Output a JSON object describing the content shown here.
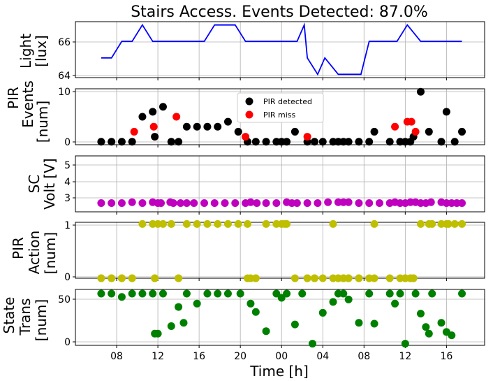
{
  "figure": {
    "title": "Stairs Access. Events Detected: 87.0%",
    "xlabel": "Time [h]",
    "x_ticks": [
      "08",
      "12",
      "16",
      "20",
      "00",
      "04",
      "08",
      "12",
      "16"
    ]
  },
  "chart_data": [
    {
      "type": "line",
      "ylabel_lines": [
        "Light",
        "[lux]"
      ],
      "y_ticks": [
        "64",
        "66"
      ],
      "ylim": [
        63.8,
        67.2
      ],
      "series": [
        {
          "color": "#0000ff",
          "x": [
            6.5,
            7.5,
            8.5,
            9.5,
            10.5,
            11.5,
            12.5,
            13.5,
            14.5,
            15.5,
            16.5,
            17.5,
            18.5,
            19.5,
            20.5,
            21.5,
            22.5,
            23.5,
            24.5,
            25.5,
            26.2,
            26.5,
            27.5,
            28.2,
            29.5,
            30.5,
            31.2,
            31.7,
            32.5,
            33.5,
            34.5,
            35.2,
            36.2,
            37.5,
            38.5,
            39.5,
            40.5,
            41.5
          ],
          "y": [
            65,
            65,
            66,
            66,
            67,
            66,
            66,
            66,
            66,
            66,
            66,
            67,
            67,
            67,
            66,
            66,
            66,
            66,
            66,
            66,
            67,
            65,
            64,
            65,
            64,
            64,
            64,
            64,
            66,
            66,
            66,
            66,
            67,
            66,
            66,
            66,
            66,
            66
          ]
        }
      ]
    },
    {
      "type": "scatter",
      "ylabel_lines": [
        "PIR",
        "Events",
        "[num]"
      ],
      "y_ticks": [
        "0",
        "10"
      ],
      "ylim": [
        -0.6,
        10.6
      ],
      "legend": {
        "position": "top-center",
        "entries": [
          {
            "label": "PIR detected",
            "color": "#000000"
          },
          {
            "label": "PIR miss",
            "color": "#ff0000"
          }
        ]
      },
      "series": [
        {
          "name": "PIR detected",
          "color": "#000000",
          "x": [
            6.5,
            7.5,
            8.5,
            9.5,
            10.5,
            11.5,
            11.7,
            12.5,
            13.3,
            14.0,
            14.8,
            15.8,
            16.8,
            17.8,
            18.8,
            19.8,
            20.7,
            21.5,
            22.5,
            23.5,
            24.0,
            24.5,
            25.3,
            26.5,
            27.2,
            28.0,
            29.0,
            29.5,
            30.0,
            30.5,
            31.5,
            32.5,
            33.0,
            34.5,
            35.5,
            36.0,
            36.5,
            36.8,
            37.5,
            38.3,
            39.5,
            40.0,
            40.8,
            41.5
          ],
          "y": [
            0,
            0,
            0,
            0,
            5,
            6,
            1,
            7,
            0,
            0,
            3,
            3,
            3,
            3,
            4,
            2,
            0,
            0,
            0,
            0,
            0,
            0,
            2,
            0,
            0,
            0,
            0,
            0,
            0,
            0,
            0,
            0,
            2,
            0,
            0,
            0,
            0,
            1,
            10,
            2,
            0,
            6,
            0,
            2
          ]
        },
        {
          "name": "PIR miss",
          "color": "#ff0000",
          "x": [
            9.7,
            11.6,
            13.8,
            20.5,
            26.5,
            35.0,
            36.2,
            36.6,
            37.0
          ],
          "y": [
            2,
            3,
            5,
            1,
            1,
            3,
            4,
            4,
            2
          ]
        }
      ]
    },
    {
      "type": "scatter",
      "ylabel_lines": [
        "SC",
        "Volt [V]"
      ],
      "y_ticks": [
        "3",
        "4",
        "5"
      ],
      "ylim": [
        2.5,
        5.7
      ],
      "series": [
        {
          "color": "#bf00bf",
          "x": [
            6.5,
            7.5,
            8.5,
            9.5,
            10.5,
            11.5,
            12.0,
            12.3,
            13.2,
            13.5,
            14.2,
            14.8,
            15.5,
            16.5,
            17.5,
            18.5,
            19.5,
            20.5,
            21.0,
            21.6,
            22.5,
            23.5,
            24.5,
            25.0,
            25.5,
            26.5,
            27.5,
            28.5,
            29.5,
            30.0,
            30.5,
            31.5,
            32.5,
            33.5,
            34.5,
            35.0,
            35.5,
            36.0,
            36.5,
            37.0,
            37.5,
            38.0,
            38.5,
            39.5,
            40.0,
            40.5,
            41.0,
            41.5
          ],
          "y": [
            3,
            3,
            3,
            3.05,
            3,
            3.05,
            3,
            3,
            3.05,
            3,
            3,
            3,
            3,
            3,
            3,
            3,
            3,
            3,
            3.05,
            3,
            3,
            3,
            3.05,
            3,
            3,
            3,
            3,
            3.05,
            3.05,
            3.05,
            3.05,
            3,
            3,
            3,
            3,
            3.05,
            3,
            3,
            3.05,
            3.05,
            3,
            3,
            3.05,
            3.05,
            3,
            3,
            3,
            3
          ]
        }
      ]
    },
    {
      "type": "scatter",
      "ylabel_lines": [
        "PIR",
        "Action",
        "[num]"
      ],
      "y_ticks": [
        "0",
        "1"
      ],
      "ylim": [
        0,
        1.03
      ],
      "series": [
        {
          "color": "#bfbf00",
          "x": [
            6.5,
            7.5,
            8.5,
            9.5,
            10.5,
            11.5,
            11.7,
            12.0,
            12.5,
            13.3,
            14.0,
            14.8,
            15.8,
            16.8,
            17.8,
            18.8,
            19.8,
            20.7,
            21.0,
            21.5,
            22.5,
            23.5,
            24.0,
            24.3,
            24.5,
            25.3,
            26.5,
            27.2,
            28.0,
            29.0,
            29.5,
            30.0,
            30.5,
            31.5,
            32.5,
            33.0,
            34.5,
            35.5,
            36.0,
            36.5,
            36.8,
            37.5,
            38.3,
            38.6,
            39.5,
            40.0,
            40.2,
            40.8,
            41.5,
            6.5,
            7.5,
            8.5,
            9.5,
            11.7,
            14.0,
            20.7,
            21.5,
            26.5,
            27.2,
            29.0,
            29.5,
            30.0,
            30.5,
            31.5,
            33.0,
            36.0,
            36.5,
            36.8
          ],
          "y": [
            0,
            0,
            0,
            0,
            1,
            1,
            0,
            1,
            1,
            1,
            0,
            1,
            1,
            1,
            1,
            1,
            1,
            1,
            0,
            0,
            1,
            1,
            1,
            1,
            1,
            0,
            0,
            0,
            0,
            1,
            0,
            0,
            0,
            0,
            0,
            1,
            0,
            0,
            0,
            0,
            0,
            1,
            1,
            1,
            1,
            1,
            1,
            1,
            1,
            0,
            0,
            0,
            0,
            0,
            0,
            0,
            0,
            0,
            0,
            0,
            0,
            0,
            0,
            0,
            0,
            0,
            0,
            0
          ]
        }
      ]
    },
    {
      "type": "scatter",
      "ylabel_lines": [
        "State",
        "Trans",
        "[num]"
      ],
      "y_ticks": [
        "0",
        "50"
      ],
      "ylim": [
        -2,
        65
      ],
      "series": [
        {
          "color": "#008000",
          "x": [
            6.5,
            7.5,
            8.5,
            9.5,
            10.5,
            11.5,
            11.7,
            12.0,
            12.5,
            13.3,
            14.0,
            14.5,
            14.8,
            15.8,
            16.8,
            17.8,
            18.8,
            20.0,
            21.0,
            21.5,
            22.5,
            23.5,
            24.0,
            24.5,
            25.3,
            26.0,
            27.0,
            28.0,
            29.0,
            29.5,
            30.0,
            30.5,
            31.5,
            32.5,
            33.0,
            34.5,
            35.0,
            35.5,
            36.0,
            37.0,
            37.5,
            38.0,
            38.3,
            38.6,
            39.5,
            40.0,
            40.5,
            41.5
          ],
          "y": [
            60,
            60,
            56,
            60,
            60,
            60,
            12,
            12,
            60,
            21,
            44,
            25,
            60,
            48,
            60,
            60,
            60,
            60,
            48,
            38,
            15,
            60,
            55,
            60,
            23,
            60,
            0,
            37,
            50,
            60,
            60,
            53,
            25,
            60,
            24,
            60,
            48,
            60,
            0,
            60,
            36,
            20,
            12,
            60,
            25,
            14,
            10,
            60
          ]
        }
      ]
    }
  ]
}
